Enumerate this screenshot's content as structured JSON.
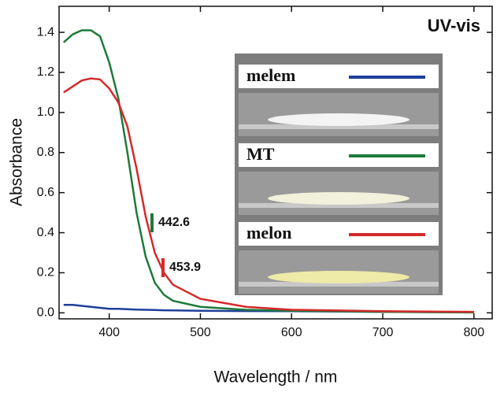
{
  "chart_data": {
    "type": "line",
    "title": "UV-vis",
    "x_label": "Wavelength / nm",
    "y_label": "Absorbance",
    "x": [
      350,
      360,
      370,
      380,
      390,
      400,
      410,
      420,
      430,
      440,
      450,
      460,
      470,
      500,
      550,
      600,
      700,
      800
    ],
    "series": [
      {
        "name": "melem",
        "color": "#1f3f9a",
        "values": [
          0.04,
          0.04,
          0.035,
          0.03,
          0.025,
          0.02,
          0.02,
          0.018,
          0.016,
          0.015,
          0.014,
          0.013,
          0.012,
          0.01,
          0.009,
          0.008,
          0.005,
          0.003
        ]
      },
      {
        "name": "MT",
        "color": "#1e7a3a",
        "values": [
          1.35,
          1.39,
          1.41,
          1.41,
          1.38,
          1.25,
          1.07,
          0.8,
          0.5,
          0.28,
          0.15,
          0.09,
          0.06,
          0.03,
          0.015,
          0.01,
          0.005,
          0.002
        ]
      },
      {
        "name": "melon",
        "color": "#d42a2a",
        "values": [
          1.1,
          1.13,
          1.16,
          1.17,
          1.165,
          1.12,
          1.05,
          0.93,
          0.72,
          0.48,
          0.3,
          0.2,
          0.14,
          0.07,
          0.03,
          0.015,
          0.008,
          0.005
        ]
      }
    ],
    "annotations": [
      {
        "text": "442.6",
        "color": "#1e7a3a"
      },
      {
        "text": "453.9",
        "color": "#d42a2a"
      }
    ],
    "xlim": [
      345,
      820
    ],
    "xticks": [
      400,
      500,
      600,
      700,
      800
    ],
    "ylim": [
      -0.03,
      1.53
    ],
    "yticks": [
      {
        "value": 0,
        "label": "0.0"
      },
      0.2,
      0.4,
      0.6,
      0.8,
      {
        "value": 1,
        "label": "1.0"
      },
      1.2,
      1.4
    ]
  }
}
